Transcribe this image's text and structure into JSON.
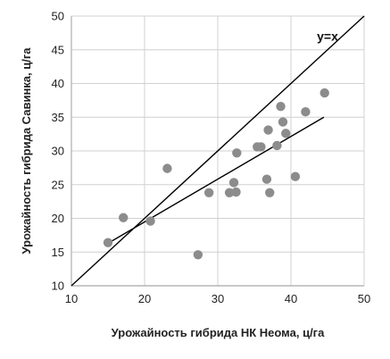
{
  "chart_data": {
    "type": "scatter",
    "xlabel": "Урожайность гибрида НК Неома, ц/га",
    "ylabel": "Урожайность гибрида Савинка, ц/га",
    "xlim": [
      10,
      50
    ],
    "ylim": [
      10,
      50
    ],
    "xticks": [
      "10",
      "20",
      "30",
      "40",
      "50"
    ],
    "yticks": [
      "10",
      "15",
      "20",
      "25",
      "30",
      "35",
      "40",
      "45",
      "50"
    ],
    "grid": true,
    "legend": "none",
    "annotations": [
      {
        "text": "y=x",
        "x": 45,
        "y": 47
      }
    ],
    "points": [
      {
        "x": 15.0,
        "y": 16.4
      },
      {
        "x": 17.1,
        "y": 20.1
      },
      {
        "x": 20.8,
        "y": 19.6
      },
      {
        "x": 23.1,
        "y": 27.4
      },
      {
        "x": 27.3,
        "y": 14.6
      },
      {
        "x": 28.8,
        "y": 23.8
      },
      {
        "x": 31.6,
        "y": 23.8
      },
      {
        "x": 32.2,
        "y": 25.3
      },
      {
        "x": 32.5,
        "y": 23.9
      },
      {
        "x": 32.6,
        "y": 29.7
      },
      {
        "x": 35.4,
        "y": 30.6
      },
      {
        "x": 35.9,
        "y": 30.6
      },
      {
        "x": 36.7,
        "y": 25.8
      },
      {
        "x": 36.9,
        "y": 33.1
      },
      {
        "x": 37.1,
        "y": 23.8
      },
      {
        "x": 38.1,
        "y": 30.8
      },
      {
        "x": 38.6,
        "y": 36.6
      },
      {
        "x": 38.9,
        "y": 34.3
      },
      {
        "x": 39.3,
        "y": 32.6
      },
      {
        "x": 40.6,
        "y": 26.2
      },
      {
        "x": 42.0,
        "y": 35.8
      },
      {
        "x": 44.6,
        "y": 38.6
      }
    ],
    "identity_line": {
      "from": [
        10,
        10
      ],
      "to": [
        50,
        50
      ]
    },
    "trend_line": {
      "from": [
        15,
        16.3
      ],
      "to": [
        44.5,
        35.0
      ]
    },
    "colors": {
      "points": "#8c8c8c",
      "lines": "#000000",
      "grid": "#d0d0d0",
      "axes": "#000000"
    }
  }
}
